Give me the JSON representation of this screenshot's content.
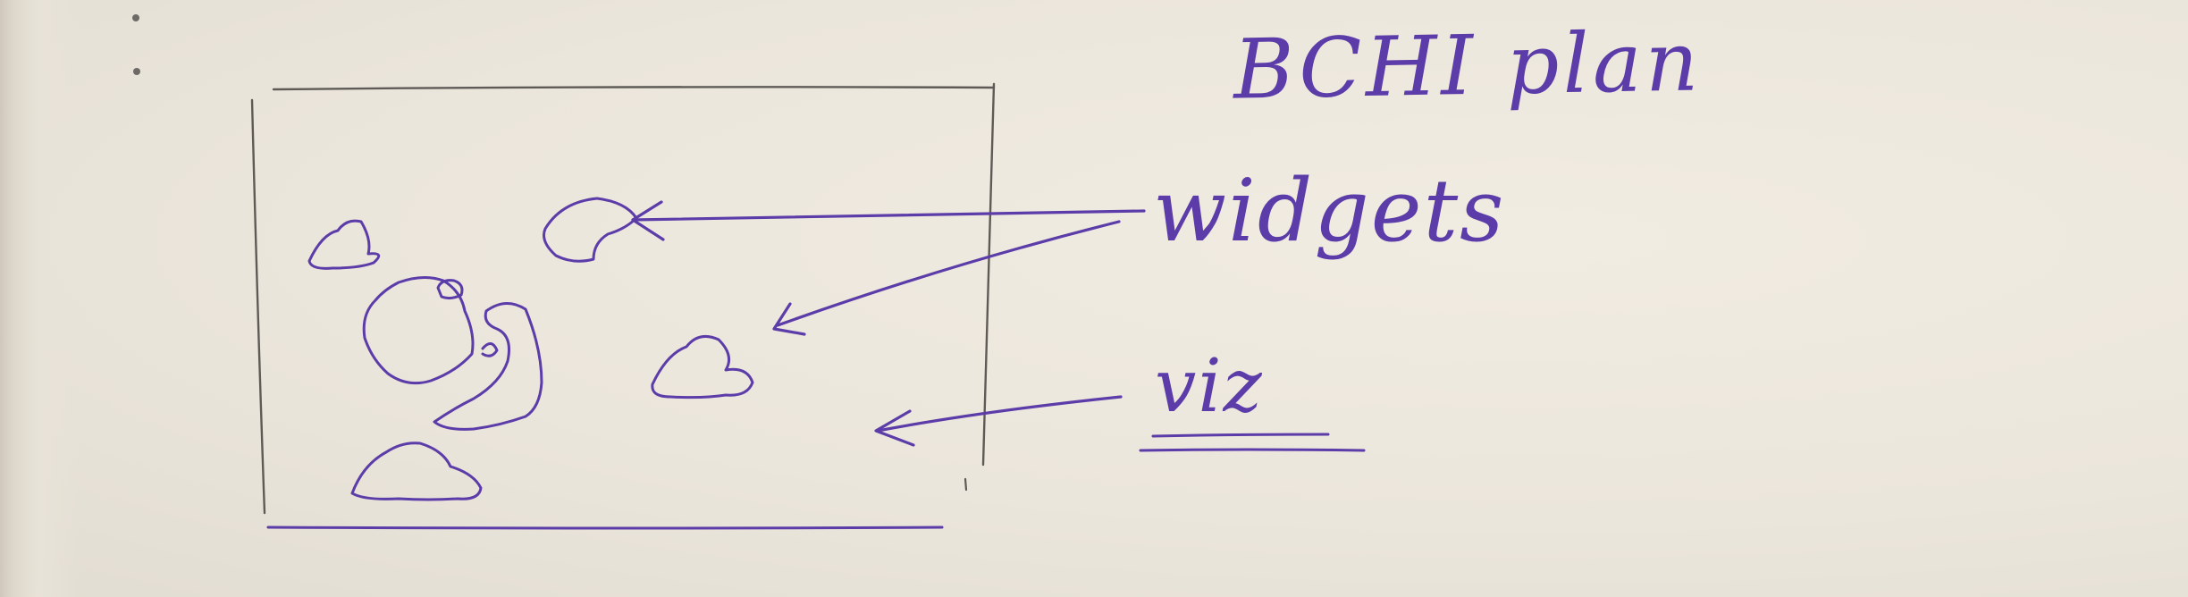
{
  "page": {
    "title": "BCHI plan"
  },
  "labels": {
    "widgets": "widgets",
    "viz": "viz"
  },
  "colors": {
    "ink": "#5b3ca8",
    "pencil": "#5e5a56",
    "paper": "#ebe6dc"
  }
}
